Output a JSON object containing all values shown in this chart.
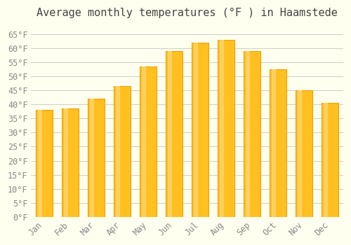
{
  "title": "Average monthly temperatures (°F ) in Haamstede",
  "months": [
    "Jan",
    "Feb",
    "Mar",
    "Apr",
    "May",
    "Jun",
    "Jul",
    "Aug",
    "Sep",
    "Oct",
    "Nov",
    "Dec"
  ],
  "values": [
    38,
    38.5,
    42,
    46.5,
    53.5,
    59,
    62,
    63,
    59,
    52.5,
    45,
    40.5
  ],
  "bar_color_face": "#FFC020",
  "bar_color_edge": "#F0A000",
  "background_color": "#FFFFF0",
  "grid_color": "#CCCCCC",
  "text_color": "#888888",
  "title_color": "#444444",
  "ylim": [
    0,
    68
  ],
  "yticks": [
    0,
    5,
    10,
    15,
    20,
    25,
    30,
    35,
    40,
    45,
    50,
    55,
    60,
    65
  ],
  "title_fontsize": 11,
  "tick_fontsize": 8.5,
  "font_family": "monospace"
}
